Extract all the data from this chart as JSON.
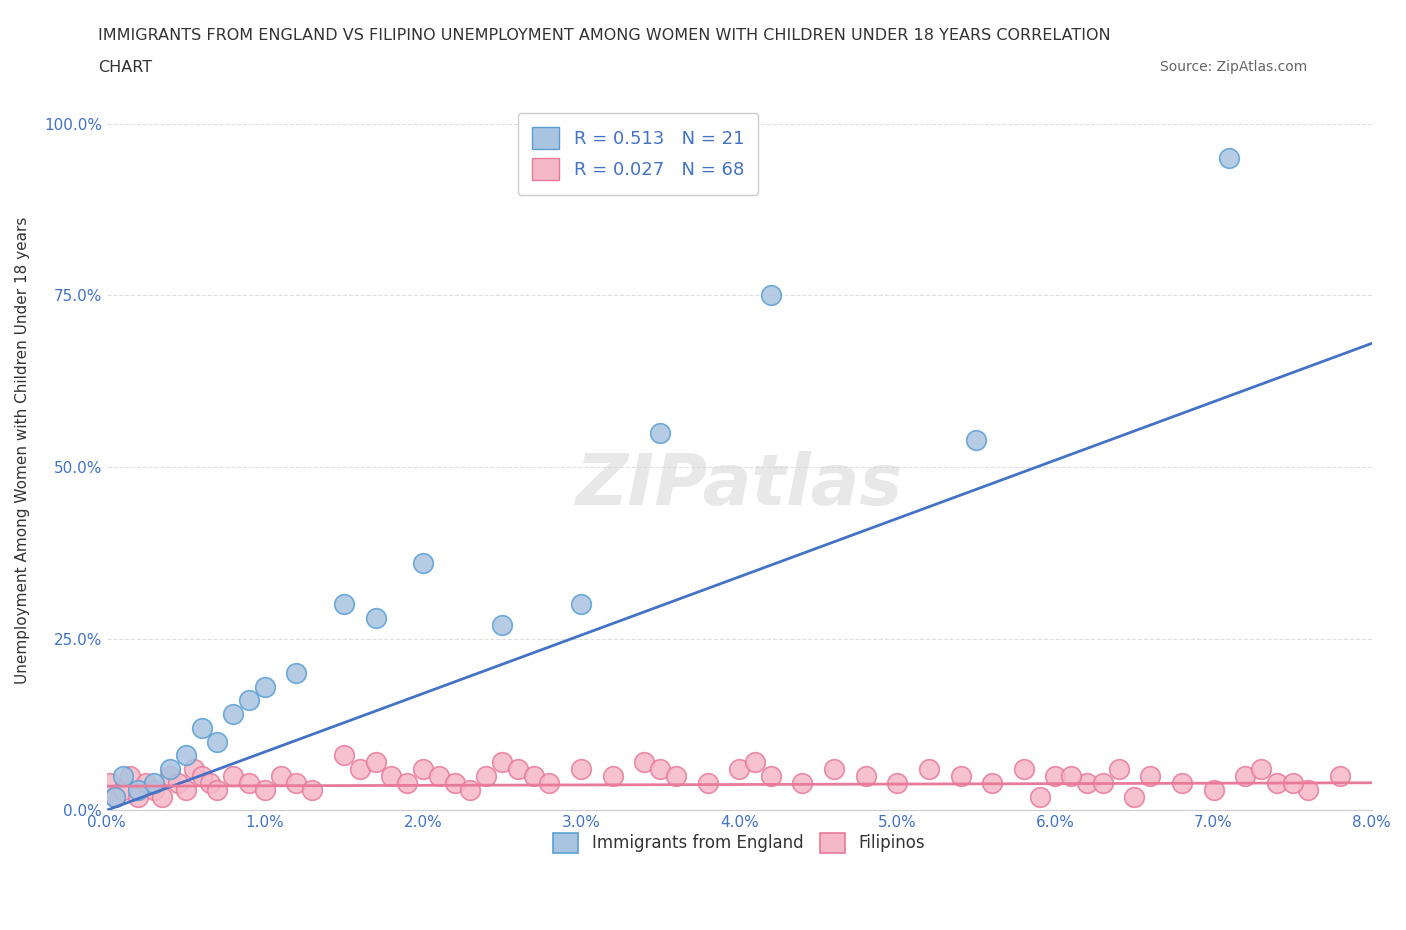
{
  "title_line1": "IMMIGRANTS FROM ENGLAND VS FILIPINO UNEMPLOYMENT AMONG WOMEN WITH CHILDREN UNDER 18 YEARS CORRELATION",
  "title_line2": "CHART",
  "source": "Source: ZipAtlas.com",
  "xlabel": "",
  "ylabel": "Unemployment Among Women with Children Under 18 years",
  "xlim": [
    0.0,
    0.08
  ],
  "ylim": [
    0.0,
    1.05
  ],
  "xticks": [
    0.0,
    0.01,
    0.02,
    0.03,
    0.04,
    0.05,
    0.06,
    0.07,
    0.08
  ],
  "xticklabels": [
    "0.0%",
    "1.0%",
    "2.0%",
    "3.0%",
    "4.0%",
    "5.0%",
    "6.0%",
    "7.0%",
    "8.0%"
  ],
  "yticks": [
    0.0,
    0.25,
    0.5,
    0.75,
    1.0
  ],
  "yticklabels": [
    "0.0%",
    "25.0%",
    "50.0%",
    "75.0%",
    "100.0%"
  ],
  "blue_color": "#a8c4e0",
  "blue_edge": "#5a9fd4",
  "pink_color": "#f5b8c8",
  "pink_edge": "#e87a9a",
  "blue_line_color": "#4472c4",
  "pink_line_color": "#e87a9a",
  "R_blue": 0.513,
  "N_blue": 21,
  "R_pink": 0.027,
  "N_pink": 68,
  "legend_label_blue": "Immigrants from England",
  "legend_label_pink": "Filipinos",
  "watermark": "ZIPatlas",
  "grid_color": "#e0e0e0",
  "blue_x": [
    0.0005,
    0.001,
    0.002,
    0.003,
    0.004,
    0.005,
    0.006,
    0.007,
    0.008,
    0.009,
    0.01,
    0.012,
    0.015,
    0.017,
    0.02,
    0.025,
    0.03,
    0.035,
    0.042,
    0.055,
    0.071
  ],
  "blue_y": [
    0.02,
    0.05,
    0.03,
    0.04,
    0.06,
    0.08,
    0.12,
    0.1,
    0.14,
    0.16,
    0.18,
    0.2,
    0.3,
    0.28,
    0.36,
    0.27,
    0.3,
    0.55,
    0.75,
    0.54,
    0.95
  ],
  "pink_x": [
    0.0002,
    0.0005,
    0.001,
    0.0015,
    0.002,
    0.0025,
    0.003,
    0.0035,
    0.004,
    0.0045,
    0.005,
    0.0055,
    0.006,
    0.0065,
    0.007,
    0.008,
    0.009,
    0.01,
    0.011,
    0.012,
    0.013,
    0.015,
    0.016,
    0.017,
    0.018,
    0.019,
    0.02,
    0.021,
    0.022,
    0.023,
    0.024,
    0.025,
    0.026,
    0.027,
    0.028,
    0.03,
    0.032,
    0.034,
    0.035,
    0.036,
    0.038,
    0.04,
    0.041,
    0.042,
    0.044,
    0.046,
    0.048,
    0.05,
    0.052,
    0.054,
    0.056,
    0.058,
    0.06,
    0.062,
    0.064,
    0.066,
    0.068,
    0.07,
    0.072,
    0.074,
    0.076,
    0.078,
    0.075,
    0.073,
    0.065,
    0.063,
    0.061,
    0.059
  ],
  "pink_y": [
    0.04,
    0.02,
    0.03,
    0.05,
    0.02,
    0.04,
    0.03,
    0.02,
    0.05,
    0.04,
    0.03,
    0.06,
    0.05,
    0.04,
    0.03,
    0.05,
    0.04,
    0.03,
    0.05,
    0.04,
    0.03,
    0.08,
    0.06,
    0.07,
    0.05,
    0.04,
    0.06,
    0.05,
    0.04,
    0.03,
    0.05,
    0.07,
    0.06,
    0.05,
    0.04,
    0.06,
    0.05,
    0.07,
    0.06,
    0.05,
    0.04,
    0.06,
    0.07,
    0.05,
    0.04,
    0.06,
    0.05,
    0.04,
    0.06,
    0.05,
    0.04,
    0.06,
    0.05,
    0.04,
    0.06,
    0.05,
    0.04,
    0.03,
    0.05,
    0.04,
    0.03,
    0.05,
    0.04,
    0.06,
    0.02,
    0.04,
    0.05,
    0.02
  ]
}
